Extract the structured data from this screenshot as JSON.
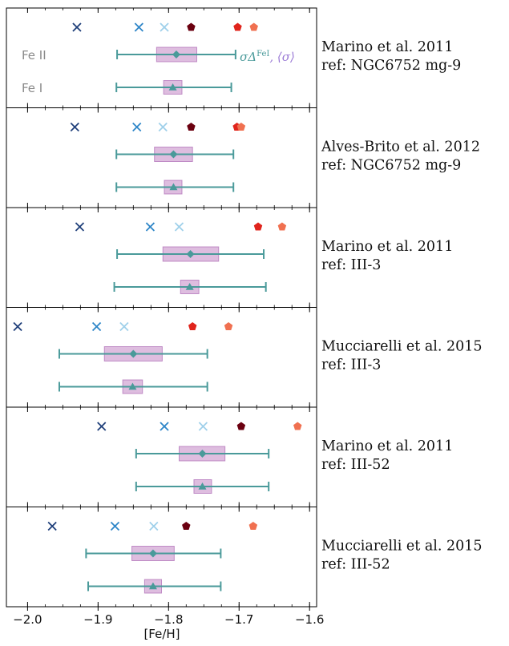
{
  "chart_data": {
    "type": "scatter",
    "xlabel": "[Fe/H]",
    "xlim": [
      -2.03,
      -1.59
    ],
    "xticks": [
      "-2.0",
      "-1.9",
      "-1.8",
      "-1.7",
      "-1.6"
    ],
    "xtick_values": [
      -2.0,
      -1.9,
      -1.8,
      -1.7,
      -1.6
    ],
    "legend": {
      "fe2": "Fe II",
      "fe1": "Fe I",
      "sigma": "σΔ",
      "sigma_sup": "FeI",
      "sigma_tail": ", ⟨σ⟩"
    },
    "colors": {
      "dark_blue": "#1f3f7a",
      "mid_blue": "#2e86c8",
      "light_blue": "#9fd0ea",
      "dark_red": "#6b0010",
      "red": "#e0241c",
      "orange": "#f07050",
      "teal": "#4a9a9a",
      "box": "#c994cc"
    },
    "panels": [
      {
        "label_line1": "Marino et al. 2011",
        "label_line2": "ref: NGC6752 mg-9",
        "crosses": [
          -1.93,
          -1.842,
          -1.806
        ],
        "pentagons": [
          -1.768,
          -1.702,
          -1.679
        ],
        "fe2": {
          "mean": -1.789,
          "lo": -1.873,
          "hi": -1.705,
          "box": [
            -1.817,
            -1.76
          ]
        },
        "fe1": {
          "mean": -1.794,
          "lo": -1.874,
          "hi": -1.711,
          "box": [
            -1.807,
            -1.781
          ]
        }
      },
      {
        "label_line1": "Alves-Brito et al. 2012",
        "label_line2": "ref: NGC6752 mg-9",
        "crosses": [
          -1.933,
          -1.845,
          -1.808
        ],
        "pentagons": [
          -1.768,
          -1.703,
          -1.697
        ],
        "fe2": {
          "mean": -1.793,
          "lo": -1.874,
          "hi": -1.708,
          "box": [
            -1.82,
            -1.766
          ]
        },
        "fe1": {
          "mean": -1.793,
          "lo": -1.874,
          "hi": -1.708,
          "box": [
            -1.806,
            -1.781
          ]
        }
      },
      {
        "label_line1": "Marino et al. 2011",
        "label_line2": "ref: III-3",
        "crosses": [
          -1.926,
          -1.826,
          -1.785
        ],
        "pentagons": [
          -1.673,
          -1.639
        ],
        "fe2": {
          "mean": -1.769,
          "lo": -1.873,
          "hi": -1.665,
          "box": [
            -1.808,
            -1.729
          ]
        },
        "fe1": {
          "mean": -1.77,
          "lo": -1.877,
          "hi": -1.662,
          "box": [
            -1.783,
            -1.757
          ]
        }
      },
      {
        "label_line1": "Mucciarelli et al. 2015",
        "label_line2": "ref: III-3",
        "crosses": [
          -2.014,
          -1.902,
          -1.863
        ],
        "pentagons": [
          -1.766,
          -1.715
        ],
        "fe2": {
          "mean": -1.85,
          "lo": -1.955,
          "hi": -1.745,
          "box": [
            -1.891,
            -1.809
          ]
        },
        "fe1": {
          "mean": -1.851,
          "lo": -1.955,
          "hi": -1.745,
          "box": [
            -1.865,
            -1.837
          ]
        }
      },
      {
        "label_line1": "Marino et al. 2011",
        "label_line2": "ref: III-52",
        "crosses": [
          -1.895,
          -1.806,
          -1.751
        ],
        "pentagons": [
          -1.697,
          -1.617
        ],
        "fe2": {
          "mean": -1.752,
          "lo": -1.846,
          "hi": -1.658,
          "box": [
            -1.785,
            -1.72
          ]
        },
        "fe1": {
          "mean": -1.752,
          "lo": -1.846,
          "hi": -1.658,
          "box": [
            -1.764,
            -1.739
          ]
        }
      },
      {
        "label_line1": "Mucciarelli et al. 2015",
        "label_line2": "ref: III-52",
        "crosses": [
          -1.965,
          -1.876,
          -1.821
        ],
        "pentagons": [
          -1.775,
          -1.68
        ],
        "fe2": {
          "mean": -1.822,
          "lo": -1.917,
          "hi": -1.726,
          "box": [
            -1.852,
            -1.792
          ]
        },
        "fe1": {
          "mean": -1.822,
          "lo": -1.914,
          "hi": -1.726,
          "box": [
            -1.834,
            -1.81
          ]
        }
      }
    ]
  }
}
